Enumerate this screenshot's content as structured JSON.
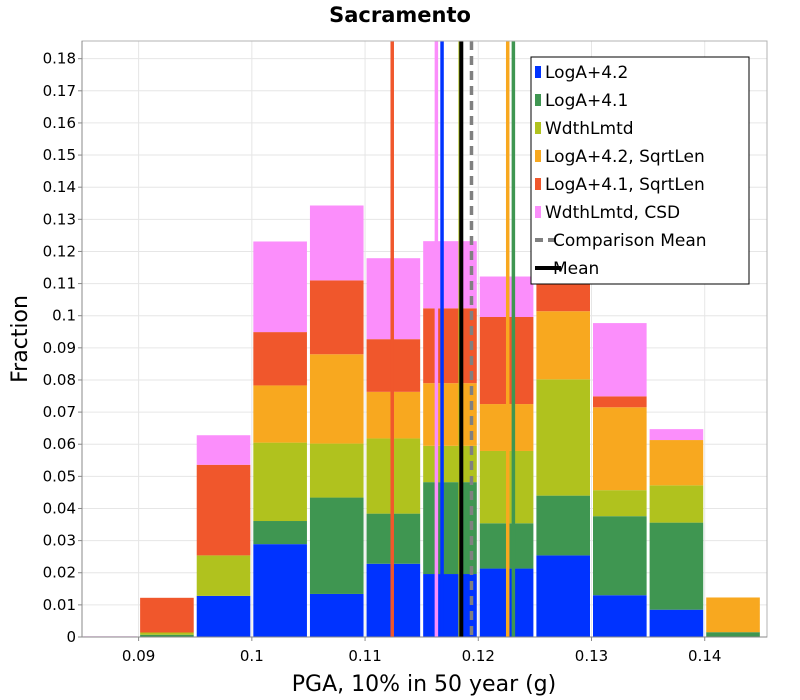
{
  "chart_data": {
    "type": "bar",
    "stacked": true,
    "title": "Sacramento",
    "xlabel": "PGA, 10% in 50 year (g)",
    "ylabel": "Fraction",
    "xlim": [
      0.085,
      0.1455
    ],
    "ylim": [
      0,
      0.1855
    ],
    "grid": true,
    "legend_position": "top-right",
    "bin_width": 0.005,
    "x": [
      0.0875,
      0.0925,
      0.0975,
      0.1025,
      0.1075,
      0.1125,
      0.1175,
      0.1225,
      0.1275,
      0.1325,
      0.1375,
      0.1425
    ],
    "xticks": [
      0.09,
      0.1,
      0.11,
      0.12,
      0.13,
      0.14
    ],
    "xtick_labels": [
      "0.09",
      "0.1",
      "0.11",
      "0.12",
      "0.13",
      "0.14"
    ],
    "yticks": [
      0,
      0.01,
      0.02,
      0.03,
      0.04,
      0.05,
      0.06,
      0.07,
      0.08,
      0.09,
      0.1,
      0.11,
      0.12,
      0.13,
      0.14,
      0.15,
      0.16,
      0.17,
      0.18
    ],
    "ytick_labels": [
      "0",
      "0.01",
      "0.02",
      "0.03",
      "0.04",
      "0.05",
      "0.06",
      "0.07",
      "0.08",
      "0.09",
      "0.1",
      "0.11",
      "0.12",
      "0.13",
      "0.14",
      "0.15",
      "0.16",
      "0.17",
      "0.18"
    ],
    "series": [
      {
        "name": "LogA+4.2",
        "color": "#0033ff",
        "values": [
          0,
          0,
          0.0128,
          0.0289,
          0.0134,
          0.0228,
          0.0196,
          0.0213,
          0.0254,
          0.013,
          0.0085,
          0
        ]
      },
      {
        "name": "LogA+4.1",
        "color": "#3f9651",
        "values": [
          0,
          0.0007,
          0,
          0.0072,
          0.03,
          0.0156,
          0.0286,
          0.0141,
          0.0186,
          0.0246,
          0.0271,
          0.0015
        ]
      },
      {
        "name": "WdthLmtd",
        "color": "#b0c21e",
        "values": [
          0,
          0.0007,
          0.0126,
          0.0244,
          0.0168,
          0.0234,
          0.0113,
          0.0225,
          0.0362,
          0.0081,
          0.0116,
          0
        ]
      },
      {
        "name": "LogA+4.2, SqrtLen",
        "color": "#f8a81f",
        "values": [
          0,
          0,
          0,
          0.0178,
          0.0278,
          0.0145,
          0.0195,
          0.0146,
          0.0212,
          0.0258,
          0.0141,
          0.0108
        ]
      },
      {
        "name": "LogA+4.1, SqrtLen",
        "color": "#f0572c",
        "values": [
          0,
          0.0108,
          0.0282,
          0.0166,
          0.023,
          0.0164,
          0.0233,
          0.0271,
          0.0191,
          0.0034,
          0,
          0
        ]
      },
      {
        "name": "WdthLmtd, CSD",
        "color": "#fb8efb",
        "values": [
          0.0002,
          0,
          0.0092,
          0.0282,
          0.0233,
          0.0252,
          0.0209,
          0.0126,
          0.0191,
          0.0228,
          0.0034,
          0
        ]
      }
    ],
    "vlines": [
      {
        "series": "LogA+4.1, SqrtLen",
        "color": "#f0572c",
        "x": 0.1124,
        "style": "solid"
      },
      {
        "series": "WdthLmtd, CSD",
        "color": "#fb8efb",
        "x": 0.1163,
        "style": "solid"
      },
      {
        "series": "LogA+4.2",
        "color": "#0033ff",
        "x": 0.1168,
        "style": "solid"
      },
      {
        "series": "WdthLmtd",
        "color": "#b0c21e",
        "x": 0.1184,
        "style": "solid"
      },
      {
        "series": "Mean",
        "color": "#000000",
        "x": 0.1185,
        "style": "solid"
      },
      {
        "series": "Comparison Mean",
        "color": "#808080",
        "x": 0.1194,
        "style": "dashed"
      },
      {
        "series": "LogA+4.2, SqrtLen",
        "color": "#f8a81f",
        "x": 0.1226,
        "style": "solid"
      },
      {
        "series": "LogA+4.1",
        "color": "#3f9651",
        "x": 0.1231,
        "style": "solid"
      }
    ],
    "legend": [
      {
        "label": "LogA+4.2",
        "color": "#0033ff",
        "kind": "box"
      },
      {
        "label": "LogA+4.1",
        "color": "#3f9651",
        "kind": "box"
      },
      {
        "label": "WdthLmtd",
        "color": "#b0c21e",
        "kind": "box"
      },
      {
        "label": "LogA+4.2, SqrtLen",
        "color": "#f8a81f",
        "kind": "box"
      },
      {
        "label": "LogA+4.1, SqrtLen",
        "color": "#f0572c",
        "kind": "box"
      },
      {
        "label": "WdthLmtd, CSD",
        "color": "#fb8efb",
        "kind": "box"
      },
      {
        "label": "Comparison Mean",
        "color": "#808080",
        "kind": "dashed-line"
      },
      {
        "label": "Mean",
        "color": "#000000",
        "kind": "line"
      }
    ]
  }
}
